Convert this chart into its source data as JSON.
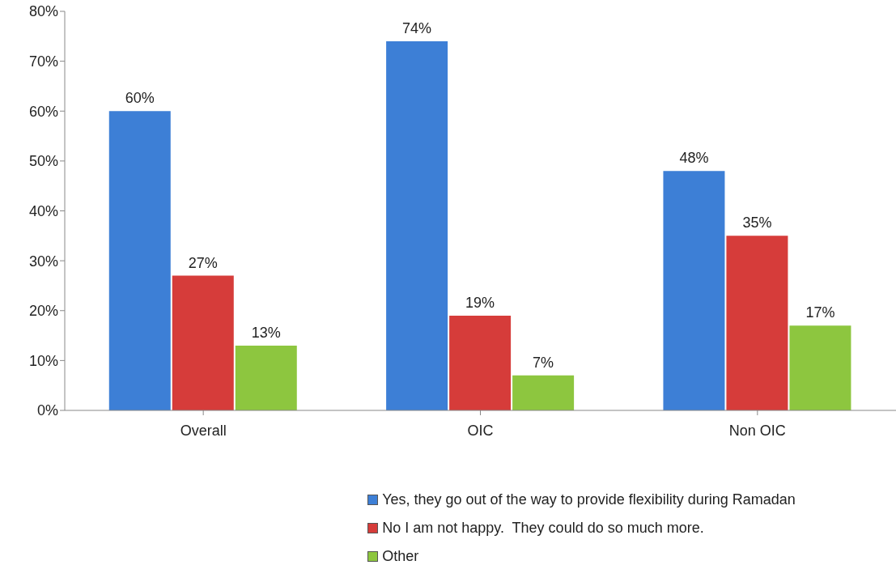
{
  "chart_data": {
    "type": "bar",
    "categories": [
      "Overall",
      "OIC",
      "Non OIC"
    ],
    "series": [
      {
        "name": "Yes, they go out of the way to provide flexibility during Ramadan",
        "color": "#3d7fd6",
        "values": [
          60,
          74,
          48
        ],
        "value_labels": [
          "60%",
          "74%",
          "48%"
        ]
      },
      {
        "name": "No I am not happy.  They could do so much more.",
        "color": "#d63c3a",
        "values": [
          27,
          19,
          35
        ],
        "value_labels": [
          "27%",
          "19%",
          "35%"
        ]
      },
      {
        "name": "Other",
        "color": "#8dc63f",
        "values": [
          13,
          7,
          17
        ],
        "value_labels": [
          "13%",
          "7%",
          "17%"
        ]
      }
    ],
    "ylim": [
      0,
      80
    ],
    "yticks": [
      {
        "value": 0,
        "label": "0%"
      },
      {
        "value": 10,
        "label": "10%"
      },
      {
        "value": 20,
        "label": "20%"
      },
      {
        "value": 30,
        "label": "30%"
      },
      {
        "value": 40,
        "label": "40%"
      },
      {
        "value": 50,
        "label": "50%"
      },
      {
        "value": 60,
        "label": "60%"
      },
      {
        "value": 70,
        "label": "70%"
      },
      {
        "value": 80,
        "label": "80%"
      }
    ],
    "grid": false,
    "legend": "bottom"
  }
}
